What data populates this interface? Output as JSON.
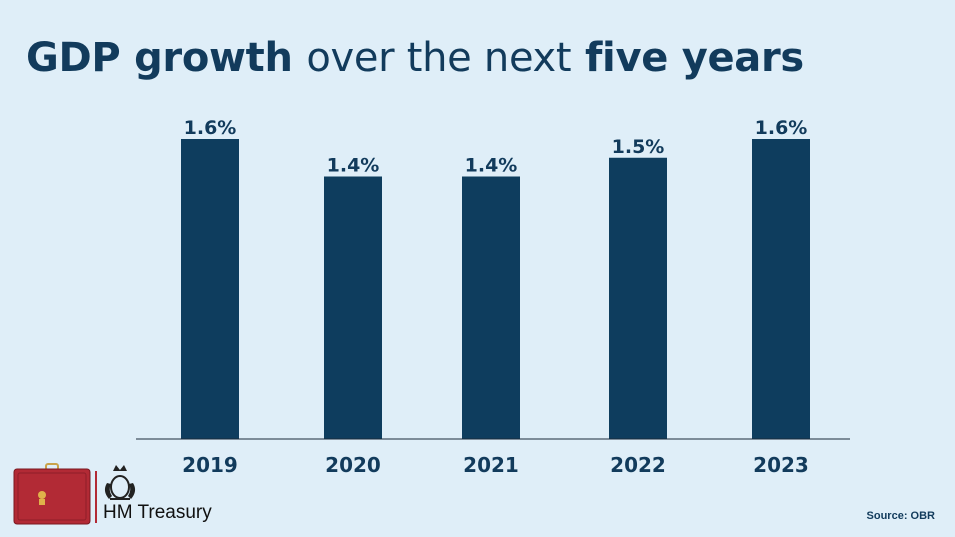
{
  "title": {
    "part1": "GDP growth",
    "part2": "over the next",
    "part3": "five years"
  },
  "chart_data": {
    "type": "bar",
    "title": "GDP growth over the next five years",
    "categories": [
      "2019",
      "2020",
      "2021",
      "2022",
      "2023"
    ],
    "values": [
      1.6,
      1.4,
      1.4,
      1.5,
      1.6
    ],
    "value_labels": [
      "1.6%",
      "1.4%",
      "1.4%",
      "1.5%",
      "1.6%"
    ],
    "ylim": [
      0,
      1.6
    ],
    "grid": false,
    "legend": "none",
    "xlabel": "",
    "ylabel": "",
    "bar_color": "#0e3d5e"
  },
  "footer": {
    "brand": "HM Treasury",
    "source": "Source: OBR"
  },
  "colors": {
    "background": "#dfeef8",
    "text": "#123b5c",
    "briefcase": "#b22a35"
  },
  "icons": {
    "briefcase": "red-budget-box-icon",
    "crest": "royal-crest-icon"
  }
}
